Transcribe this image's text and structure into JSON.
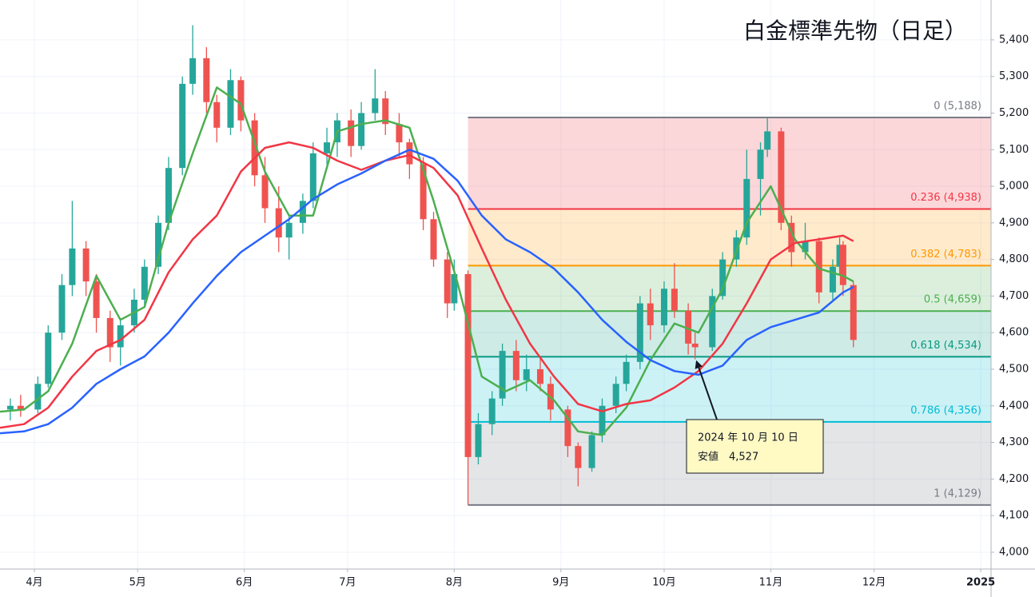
{
  "chart_data": {
    "type": "candlestick",
    "title": "白金標準先物（日足）",
    "xlim": [
      "2024-03-22",
      "2025-01-04"
    ],
    "ylim": [
      3954,
      5509
    ],
    "yticks": [
      {
        "value": 4000,
        "label": "4,000"
      },
      {
        "value": 4100,
        "label": "4,100"
      },
      {
        "value": 4200,
        "label": "4,200"
      },
      {
        "value": 4300,
        "label": "4,300"
      },
      {
        "value": 4400,
        "label": "4,400"
      },
      {
        "value": 4500,
        "label": "4,500"
      },
      {
        "value": 4600,
        "label": "4,600"
      },
      {
        "value": 4700,
        "label": "4,700"
      },
      {
        "value": 4800,
        "label": "4,800"
      },
      {
        "value": 4900,
        "label": "4,900"
      },
      {
        "value": 5000,
        "label": "5,000"
      },
      {
        "value": 5100,
        "label": "5,100"
      },
      {
        "value": 5200,
        "label": "5,200"
      },
      {
        "value": 5300,
        "label": "5,300"
      },
      {
        "value": 5400,
        "label": "5,400"
      }
    ],
    "xticks": [
      {
        "value": "2024-04-01",
        "label": "4月"
      },
      {
        "value": "2024-05-01",
        "label": "5月"
      },
      {
        "value": "2024-06-01",
        "label": "6月"
      },
      {
        "value": "2024-07-01",
        "label": "7月"
      },
      {
        "value": "2024-08-01",
        "label": "8月"
      },
      {
        "value": "2024-09-01",
        "label": "9月"
      },
      {
        "value": "2024-10-01",
        "label": "10月"
      },
      {
        "value": "2024-11-01",
        "label": "11月"
      },
      {
        "value": "2024-12-01",
        "label": "12月"
      },
      {
        "value": "2025-01-01",
        "label": "2025"
      }
    ],
    "grid": true,
    "up_color": "#26a69a",
    "down_color": "#ef5350",
    "candles": {
      "x": [
        "2024-03-25",
        "2024-03-28",
        "2024-04-02",
        "2024-04-05",
        "2024-04-09",
        "2024-04-12",
        "2024-04-16",
        "2024-04-19",
        "2024-04-23",
        "2024-04-26",
        "2024-04-30",
        "2024-05-03",
        "2024-05-07",
        "2024-05-10",
        "2024-05-14",
        "2024-05-17",
        "2024-05-21",
        "2024-05-24",
        "2024-05-28",
        "2024-05-31",
        "2024-06-04",
        "2024-06-07",
        "2024-06-11",
        "2024-06-14",
        "2024-06-18",
        "2024-06-21",
        "2024-06-25",
        "2024-06-28",
        "2024-07-02",
        "2024-07-05",
        "2024-07-09",
        "2024-07-12",
        "2024-07-16",
        "2024-07-19",
        "2024-07-23",
        "2024-07-26",
        "2024-07-30",
        "2024-08-01",
        "2024-08-05",
        "2024-08-08",
        "2024-08-12",
        "2024-08-15",
        "2024-08-19",
        "2024-08-22",
        "2024-08-26",
        "2024-08-29",
        "2024-09-03",
        "2024-09-06",
        "2024-09-10",
        "2024-09-13",
        "2024-09-17",
        "2024-09-20",
        "2024-09-24",
        "2024-09-27",
        "2024-10-01",
        "2024-10-04",
        "2024-10-08",
        "2024-10-10",
        "2024-10-15",
        "2024-10-18",
        "2024-10-22",
        "2024-10-25",
        "2024-10-29",
        "2024-10-31",
        "2024-11-04",
        "2024-11-07",
        "2024-11-11",
        "2024-11-15",
        "2024-11-19",
        "2024-11-21",
        "2024-11-22",
        "2024-11-25"
      ],
      "open": [
        4390,
        4400,
        4390,
        4460,
        4600,
        4730,
        4830,
        4740,
        4640,
        4560,
        4620,
        4690,
        4780,
        4900,
        5050,
        5280,
        5350,
        5230,
        5160,
        5290,
        5180,
        5030,
        4940,
        4860,
        4900,
        4960,
        5090,
        5120,
        5180,
        5110,
        5200,
        5240,
        5170,
        5120,
        5060,
        4910,
        4800,
        4680,
        4760,
        4260,
        4350,
        4420,
        4550,
        4470,
        4500,
        4460,
        4390,
        4290,
        4230,
        4320,
        4400,
        4460,
        4520,
        4680,
        4620,
        4720,
        4660,
        4570,
        4560,
        4700,
        4800,
        4860,
        5020,
        5100,
        5150,
        4900,
        4820,
        4850,
        4710,
        4780,
        4840,
        4730
      ],
      "high": [
        4420,
        4430,
        4480,
        4620,
        4760,
        4960,
        4850,
        4760,
        4660,
        4640,
        4720,
        4800,
        4920,
        5080,
        5300,
        5440,
        5380,
        5250,
        5320,
        5300,
        5200,
        5080,
        5000,
        4920,
        4980,
        5120,
        5160,
        5200,
        5210,
        5230,
        5320,
        5260,
        5200,
        5130,
        5080,
        4930,
        4820,
        4800,
        4770,
        4380,
        4440,
        4570,
        4580,
        4540,
        4530,
        4480,
        4400,
        4300,
        4330,
        4420,
        4480,
        4540,
        4700,
        4720,
        4740,
        4790,
        4680,
        4600,
        4720,
        4820,
        4880,
        5100,
        5120,
        5188,
        5160,
        4920,
        4900,
        4860,
        4800,
        4860,
        4850,
        4740
      ],
      "low": [
        4360,
        4370,
        4380,
        4450,
        4580,
        4700,
        4700,
        4600,
        4520,
        4510,
        4600,
        4670,
        4760,
        4880,
        5030,
        5250,
        5200,
        5120,
        5140,
        5150,
        5000,
        4900,
        4820,
        4800,
        4870,
        4940,
        5060,
        5080,
        5080,
        5100,
        5180,
        5140,
        5080,
        5020,
        4880,
        4780,
        4640,
        4660,
        4129,
        4240,
        4320,
        4400,
        4440,
        4440,
        4440,
        4360,
        4260,
        4180,
        4220,
        4300,
        4380,
        4440,
        4500,
        4580,
        4600,
        4640,
        4540,
        4527,
        4550,
        4690,
        4780,
        4840,
        4920,
        5080,
        4880,
        4780,
        4800,
        4680,
        4690,
        4760,
        4700,
        4560
      ],
      "close": [
        4400,
        4390,
        4460,
        4600,
        4730,
        4830,
        4740,
        4640,
        4560,
        4620,
        4690,
        4780,
        4900,
        5050,
        5280,
        5350,
        5230,
        5160,
        5290,
        5180,
        5030,
        4940,
        4860,
        4900,
        4960,
        5090,
        5120,
        5180,
        5110,
        5200,
        5240,
        5170,
        5120,
        5060,
        4910,
        4800,
        4680,
        4760,
        4260,
        4350,
        4420,
        4550,
        4470,
        4500,
        4460,
        4390,
        4290,
        4230,
        4320,
        4400,
        4460,
        4520,
        4680,
        4620,
        4720,
        4660,
        4570,
        4560,
        4700,
        4800,
        4860,
        5020,
        5100,
        5150,
        4900,
        4820,
        4850,
        4710,
        4780,
        4840,
        4730,
        4580
      ]
    },
    "ma_x": [
      "2024-03-22",
      "2024-03-29",
      "2024-04-05",
      "2024-04-12",
      "2024-04-19",
      "2024-04-26",
      "2024-05-03",
      "2024-05-10",
      "2024-05-17",
      "2024-05-24",
      "2024-05-31",
      "2024-06-07",
      "2024-06-14",
      "2024-06-21",
      "2024-06-28",
      "2024-07-05",
      "2024-07-12",
      "2024-07-19",
      "2024-07-26",
      "2024-08-02",
      "2024-08-09",
      "2024-08-16",
      "2024-08-23",
      "2024-08-30",
      "2024-09-06",
      "2024-09-13",
      "2024-09-20",
      "2024-09-27",
      "2024-10-04",
      "2024-10-11",
      "2024-10-18",
      "2024-10-25",
      "2024-11-01",
      "2024-11-08",
      "2024-11-15",
      "2024-11-22",
      "2024-11-25"
    ],
    "moving_averages": [
      {
        "color": "#4caf50",
        "values": [
          4384,
          4390,
          4440,
          4570,
          4755,
          4635,
          4670,
          4900,
          5090,
          5270,
          5225,
          5040,
          4920,
          4920,
          5150,
          5170,
          5180,
          5160,
          4960,
          4735,
          4480,
          4440,
          4470,
          4415,
          4330,
          4320,
          4395,
          4525,
          4625,
          4600,
          4720,
          4900,
          5000,
          4855,
          4775,
          4755,
          4740
        ]
      },
      {
        "color": "#f23645",
        "values": [
          4340,
          4350,
          4395,
          4480,
          4550,
          4580,
          4635,
          4765,
          4855,
          4920,
          5040,
          5105,
          5120,
          5105,
          5070,
          5045,
          5070,
          5085,
          5050,
          4975,
          4830,
          4690,
          4570,
          4480,
          4405,
          4385,
          4405,
          4415,
          4450,
          4495,
          4570,
          4680,
          4800,
          4845,
          4855,
          4865,
          4850
        ]
      },
      {
        "color": "#2962ff",
        "values": [
          4325,
          4330,
          4350,
          4395,
          4460,
          4500,
          4535,
          4600,
          4680,
          4755,
          4820,
          4865,
          4910,
          4965,
          5005,
          5035,
          5070,
          5100,
          5075,
          5015,
          4920,
          4855,
          4820,
          4775,
          4710,
          4635,
          4575,
          4525,
          4495,
          4485,
          4510,
          4580,
          4615,
          4635,
          4655,
          4710,
          4725
        ]
      }
    ],
    "fibonacci": {
      "start": "2024-08-05",
      "levels": [
        {
          "label": "0 (5,188)",
          "value": 5188,
          "color": "#787b86"
        },
        {
          "label": "0.236 (4,938)",
          "value": 4938,
          "color": "#f23645"
        },
        {
          "label": "0.382 (4,783)",
          "value": 4783,
          "color": "#ff9800"
        },
        {
          "label": "0.5 (4,659)",
          "value": 4659,
          "color": "#4caf50"
        },
        {
          "label": "0.618 (4,534)",
          "value": 4534,
          "color": "#089981"
        },
        {
          "label": "0.786 (4,356)",
          "value": 4356,
          "color": "#00bcd4"
        },
        {
          "label": "1 (4,129)",
          "value": 4129,
          "color": "#787b86"
        }
      ]
    },
    "annotation": {
      "date_label": "2024 年 10 月 10 日",
      "text": "安値　4,527",
      "x": "2024-10-10",
      "value": 4527
    }
  }
}
